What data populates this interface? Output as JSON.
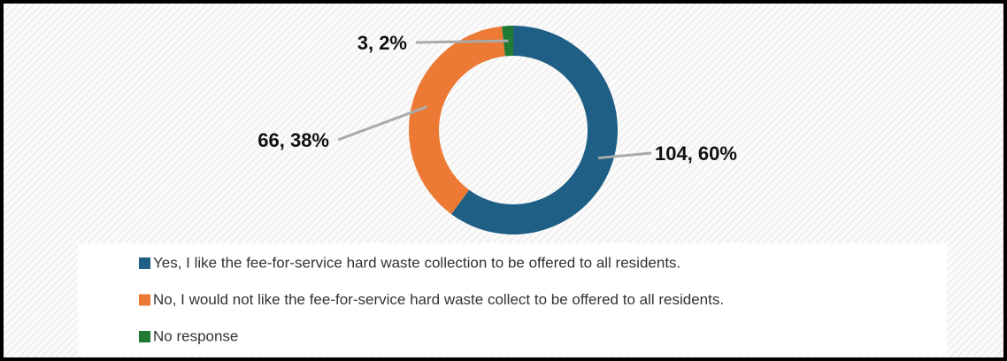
{
  "chart_data": {
    "type": "donut",
    "categories": [
      "Yes, I like the fee-for-service hard waste collection to be offered to all residents.",
      "No, I would not like the fee-for-service hard waste collect to be offered to all residents.",
      "No response"
    ],
    "values": [
      104,
      66,
      3
    ],
    "value_labels": [
      "104, 60%",
      "66, 38%",
      "3, 2%"
    ],
    "colors": [
      "#1f5e85",
      "#ec7934",
      "#1f7a34"
    ],
    "legend": "bottom"
  }
}
